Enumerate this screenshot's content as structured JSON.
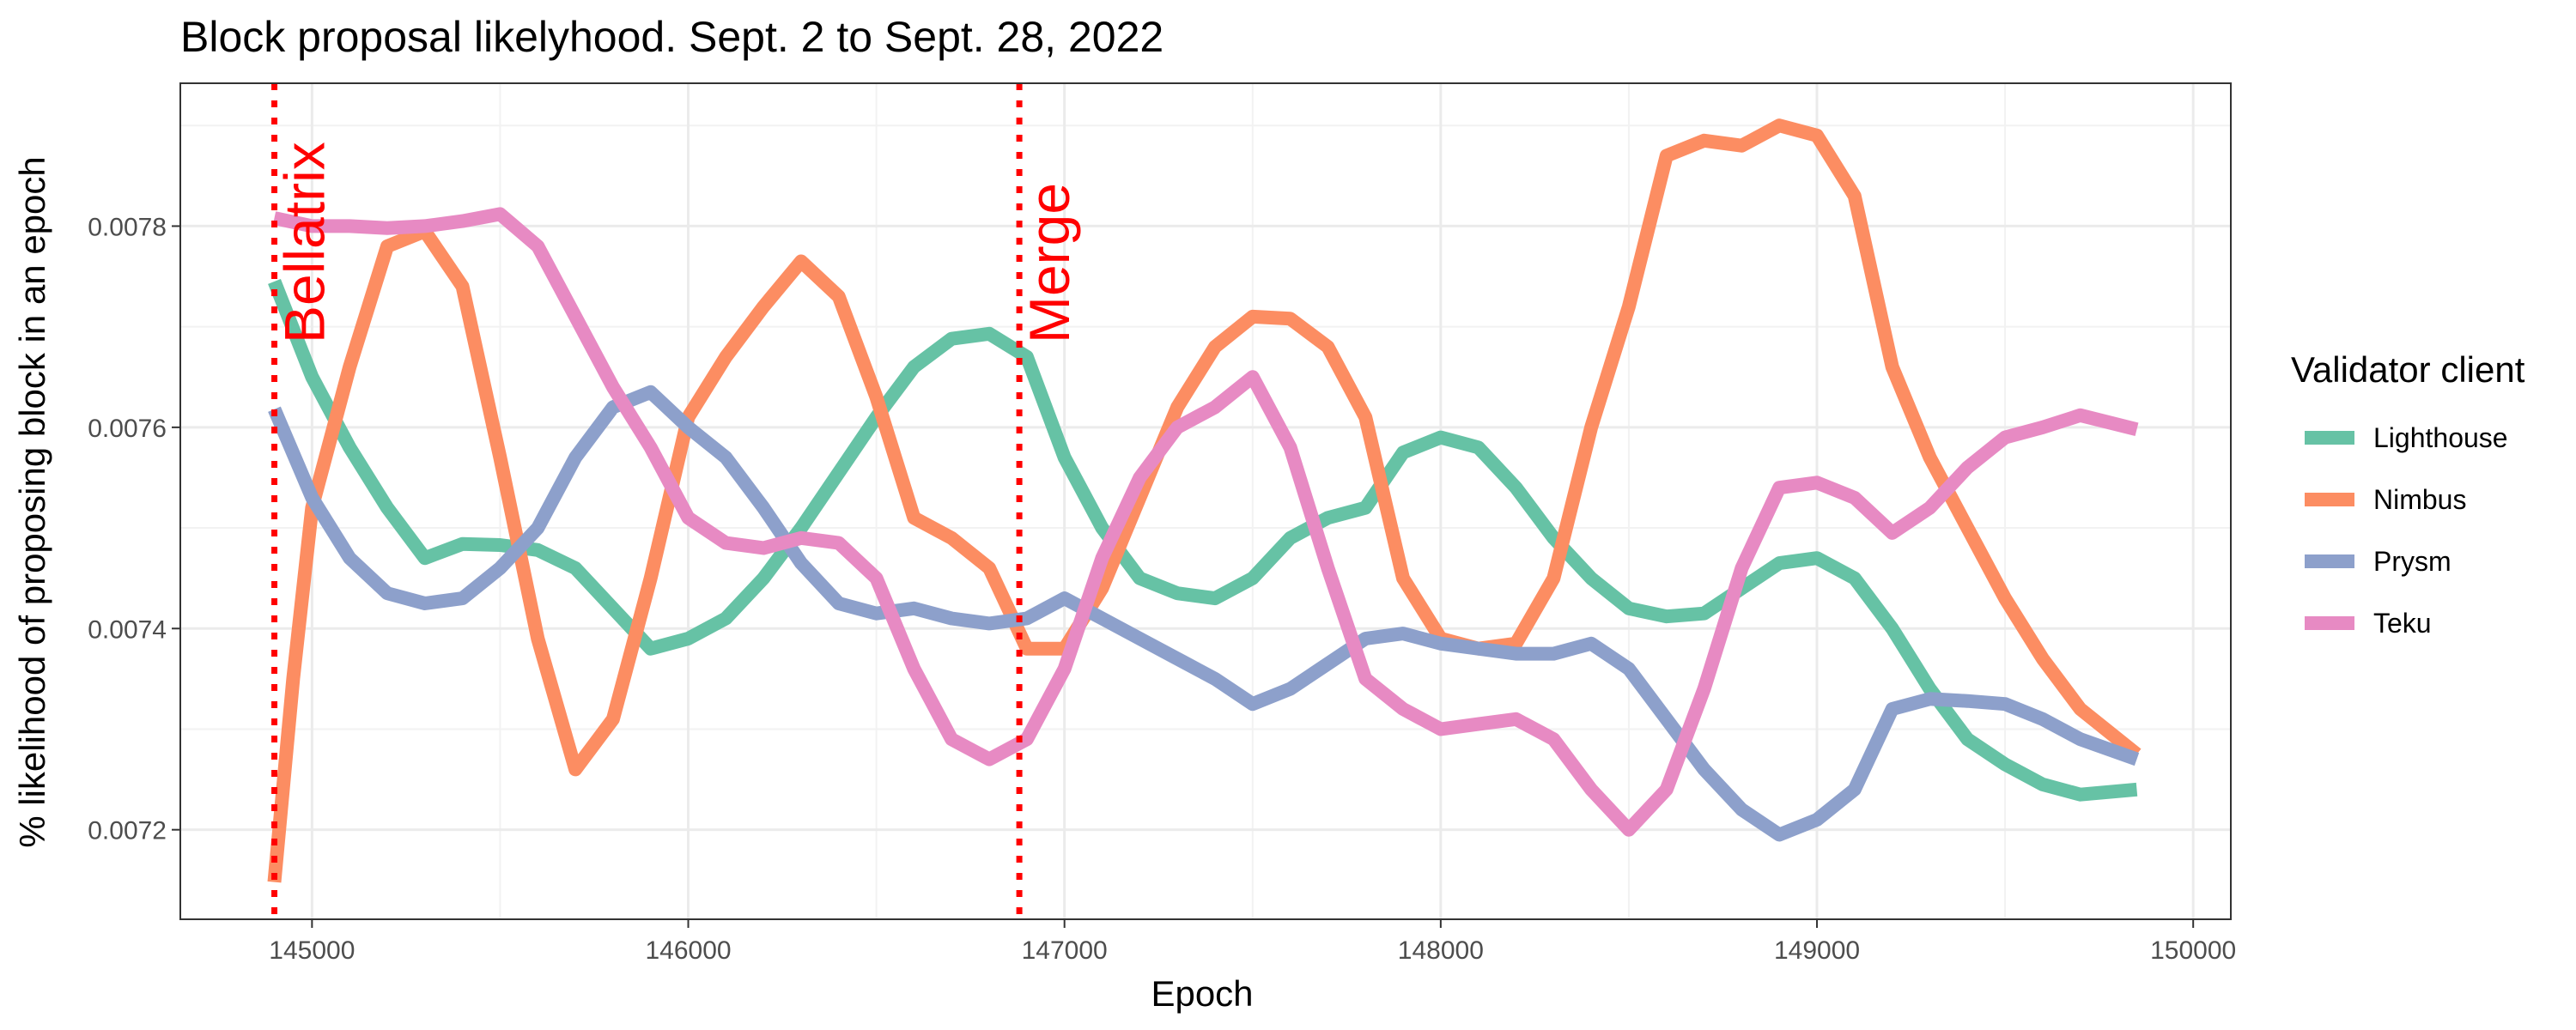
{
  "chart_data": {
    "type": "line",
    "title": "Block proposal likelyhood. Sept. 2 to Sept. 28, 2022",
    "xlabel": "Epoch",
    "ylabel": "% likelihood of proposing block in an epoch",
    "xlim": [
      144650,
      150100
    ],
    "ylim": [
      0.007111,
      0.007942
    ],
    "x_ticks": [
      145000,
      146000,
      147000,
      148000,
      149000,
      150000
    ],
    "x_tick_labels": [
      "145000",
      "146000",
      "147000",
      "148000",
      "149000",
      "150000"
    ],
    "y_ticks": [
      0.0072,
      0.0074,
      0.0076,
      0.0078
    ],
    "y_tick_labels": [
      "0.0072",
      "0.0074",
      "0.0076",
      "0.0078"
    ],
    "grid": true,
    "legend": {
      "title": "Validator client",
      "position": "right"
    },
    "vlines": [
      {
        "x": 144900,
        "label": "Bellatrix",
        "color": "#ff0000"
      },
      {
        "x": 146880,
        "label": "Merge",
        "color": "#ff0000"
      }
    ],
    "series": [
      {
        "name": "Lighthouse",
        "color": "#66c2a5",
        "points": [
          [
            144900,
            0.007745
          ],
          [
            145000,
            0.00765
          ],
          [
            145100,
            0.00758
          ],
          [
            145200,
            0.00752
          ],
          [
            145300,
            0.00747
          ],
          [
            145400,
            0.007484
          ],
          [
            145500,
            0.007483
          ],
          [
            145600,
            0.007478
          ],
          [
            145700,
            0.00746
          ],
          [
            145800,
            0.00742
          ],
          [
            145900,
            0.00738
          ],
          [
            146000,
            0.00739
          ],
          [
            146100,
            0.00741
          ],
          [
            146200,
            0.00745
          ],
          [
            146300,
            0.0075
          ],
          [
            146400,
            0.007555
          ],
          [
            146500,
            0.00761
          ],
          [
            146600,
            0.00766
          ],
          [
            146700,
            0.007688
          ],
          [
            146800,
            0.007693
          ],
          [
            146900,
            0.00767
          ],
          [
            147000,
            0.00757
          ],
          [
            147100,
            0.0075
          ],
          [
            147200,
            0.00745
          ],
          [
            147300,
            0.007435
          ],
          [
            147400,
            0.00743
          ],
          [
            147500,
            0.00745
          ],
          [
            147600,
            0.00749
          ],
          [
            147700,
            0.00751
          ],
          [
            147800,
            0.00752
          ],
          [
            147900,
            0.007575
          ],
          [
            148000,
            0.00759
          ],
          [
            148100,
            0.00758
          ],
          [
            148200,
            0.00754
          ],
          [
            148300,
            0.00749
          ],
          [
            148400,
            0.00745
          ],
          [
            148500,
            0.00742
          ],
          [
            148600,
            0.007412
          ],
          [
            148700,
            0.007415
          ],
          [
            148800,
            0.00744
          ],
          [
            148900,
            0.007465
          ],
          [
            149000,
            0.00747
          ],
          [
            149100,
            0.00745
          ],
          [
            149200,
            0.0074
          ],
          [
            149300,
            0.00734
          ],
          [
            149400,
            0.00729
          ],
          [
            149500,
            0.007265
          ],
          [
            149600,
            0.007245
          ],
          [
            149700,
            0.007235
          ],
          [
            149850,
            0.00724
          ]
        ]
      },
      {
        "name": "Nimbus",
        "color": "#fc8d62",
        "points": [
          [
            144900,
            0.007148
          ],
          [
            144950,
            0.00735
          ],
          [
            145000,
            0.00752
          ],
          [
            145100,
            0.00766
          ],
          [
            145200,
            0.00778
          ],
          [
            145300,
            0.007795
          ],
          [
            145400,
            0.00774
          ],
          [
            145500,
            0.00757
          ],
          [
            145600,
            0.00739
          ],
          [
            145700,
            0.00726
          ],
          [
            145800,
            0.00731
          ],
          [
            145900,
            0.00745
          ],
          [
            146000,
            0.00761
          ],
          [
            146100,
            0.00767
          ],
          [
            146200,
            0.00772
          ],
          [
            146300,
            0.007765
          ],
          [
            146400,
            0.00773
          ],
          [
            146500,
            0.00763
          ],
          [
            146600,
            0.00751
          ],
          [
            146700,
            0.00749
          ],
          [
            146800,
            0.00746
          ],
          [
            146900,
            0.00738
          ],
          [
            147000,
            0.00738
          ],
          [
            147100,
            0.00744
          ],
          [
            147200,
            0.00753
          ],
          [
            147300,
            0.00762
          ],
          [
            147400,
            0.00768
          ],
          [
            147500,
            0.00771
          ],
          [
            147600,
            0.007708
          ],
          [
            147700,
            0.00768
          ],
          [
            147800,
            0.00761
          ],
          [
            147900,
            0.00745
          ],
          [
            148000,
            0.00739
          ],
          [
            148100,
            0.00738
          ],
          [
            148200,
            0.007385
          ],
          [
            148300,
            0.00745
          ],
          [
            148400,
            0.0076
          ],
          [
            148500,
            0.00772
          ],
          [
            148600,
            0.00787
          ],
          [
            148700,
            0.007885
          ],
          [
            148800,
            0.00788
          ],
          [
            148900,
            0.0079
          ],
          [
            149000,
            0.00789
          ],
          [
            149100,
            0.00783
          ],
          [
            149200,
            0.00766
          ],
          [
            149300,
            0.00757
          ],
          [
            149400,
            0.0075
          ],
          [
            149500,
            0.00743
          ],
          [
            149600,
            0.00737
          ],
          [
            149700,
            0.00732
          ],
          [
            149850,
            0.007275
          ]
        ]
      },
      {
        "name": "Prysm",
        "color": "#8da0cb",
        "points": [
          [
            144900,
            0.007618
          ],
          [
            145000,
            0.00753
          ],
          [
            145100,
            0.00747
          ],
          [
            145200,
            0.007435
          ],
          [
            145300,
            0.007425
          ],
          [
            145400,
            0.00743
          ],
          [
            145500,
            0.00746
          ],
          [
            145600,
            0.0075
          ],
          [
            145700,
            0.00757
          ],
          [
            145800,
            0.00762
          ],
          [
            145900,
            0.007635
          ],
          [
            146000,
            0.0076
          ],
          [
            146100,
            0.00757
          ],
          [
            146200,
            0.00752
          ],
          [
            146300,
            0.007465
          ],
          [
            146400,
            0.007425
          ],
          [
            146500,
            0.007415
          ],
          [
            146600,
            0.00742
          ],
          [
            146700,
            0.00741
          ],
          [
            146800,
            0.007405
          ],
          [
            146900,
            0.00741
          ],
          [
            147000,
            0.00743
          ],
          [
            147100,
            0.00741
          ],
          [
            147200,
            0.00739
          ],
          [
            147300,
            0.00737
          ],
          [
            147400,
            0.00735
          ],
          [
            147500,
            0.007325
          ],
          [
            147600,
            0.00734
          ],
          [
            147700,
            0.007365
          ],
          [
            147800,
            0.00739
          ],
          [
            147900,
            0.007395
          ],
          [
            148000,
            0.007385
          ],
          [
            148100,
            0.00738
          ],
          [
            148200,
            0.007375
          ],
          [
            148300,
            0.007375
          ],
          [
            148400,
            0.007385
          ],
          [
            148500,
            0.00736
          ],
          [
            148600,
            0.00731
          ],
          [
            148700,
            0.00726
          ],
          [
            148800,
            0.00722
          ],
          [
            148900,
            0.007195
          ],
          [
            149000,
            0.00721
          ],
          [
            149100,
            0.00724
          ],
          [
            149200,
            0.00732
          ],
          [
            149300,
            0.00733
          ],
          [
            149400,
            0.007328
          ],
          [
            149500,
            0.007325
          ],
          [
            149600,
            0.00731
          ],
          [
            149700,
            0.00729
          ],
          [
            149850,
            0.00727
          ]
        ]
      },
      {
        "name": "Teku",
        "color": "#e78ac3",
        "points": [
          [
            144900,
            0.007808
          ],
          [
            145000,
            0.0078
          ],
          [
            145100,
            0.0078
          ],
          [
            145200,
            0.007798
          ],
          [
            145300,
            0.0078
          ],
          [
            145400,
            0.007805
          ],
          [
            145500,
            0.007812
          ],
          [
            145600,
            0.00778
          ],
          [
            145700,
            0.00771
          ],
          [
            145800,
            0.00764
          ],
          [
            145900,
            0.00758
          ],
          [
            146000,
            0.00751
          ],
          [
            146100,
            0.007485
          ],
          [
            146200,
            0.00748
          ],
          [
            146300,
            0.00749
          ],
          [
            146400,
            0.007485
          ],
          [
            146500,
            0.00745
          ],
          [
            146600,
            0.00736
          ],
          [
            146700,
            0.00729
          ],
          [
            146800,
            0.00727
          ],
          [
            146900,
            0.00729
          ],
          [
            147000,
            0.00736
          ],
          [
            147100,
            0.00747
          ],
          [
            147200,
            0.00755
          ],
          [
            147300,
            0.0076
          ],
          [
            147400,
            0.00762
          ],
          [
            147500,
            0.00765
          ],
          [
            147600,
            0.00758
          ],
          [
            147700,
            0.00746
          ],
          [
            147800,
            0.00735
          ],
          [
            147900,
            0.00732
          ],
          [
            148000,
            0.0073
          ],
          [
            148100,
            0.007305
          ],
          [
            148200,
            0.00731
          ],
          [
            148300,
            0.00729
          ],
          [
            148400,
            0.00724
          ],
          [
            148500,
            0.0072
          ],
          [
            148600,
            0.00724
          ],
          [
            148700,
            0.00734
          ],
          [
            148800,
            0.00746
          ],
          [
            148900,
            0.00754
          ],
          [
            149000,
            0.007545
          ],
          [
            149100,
            0.00753
          ],
          [
            149200,
            0.007495
          ],
          [
            149300,
            0.00752
          ],
          [
            149400,
            0.00756
          ],
          [
            149500,
            0.00759
          ],
          [
            149600,
            0.0076
          ],
          [
            149700,
            0.007612
          ],
          [
            149850,
            0.007598
          ]
        ]
      }
    ]
  }
}
